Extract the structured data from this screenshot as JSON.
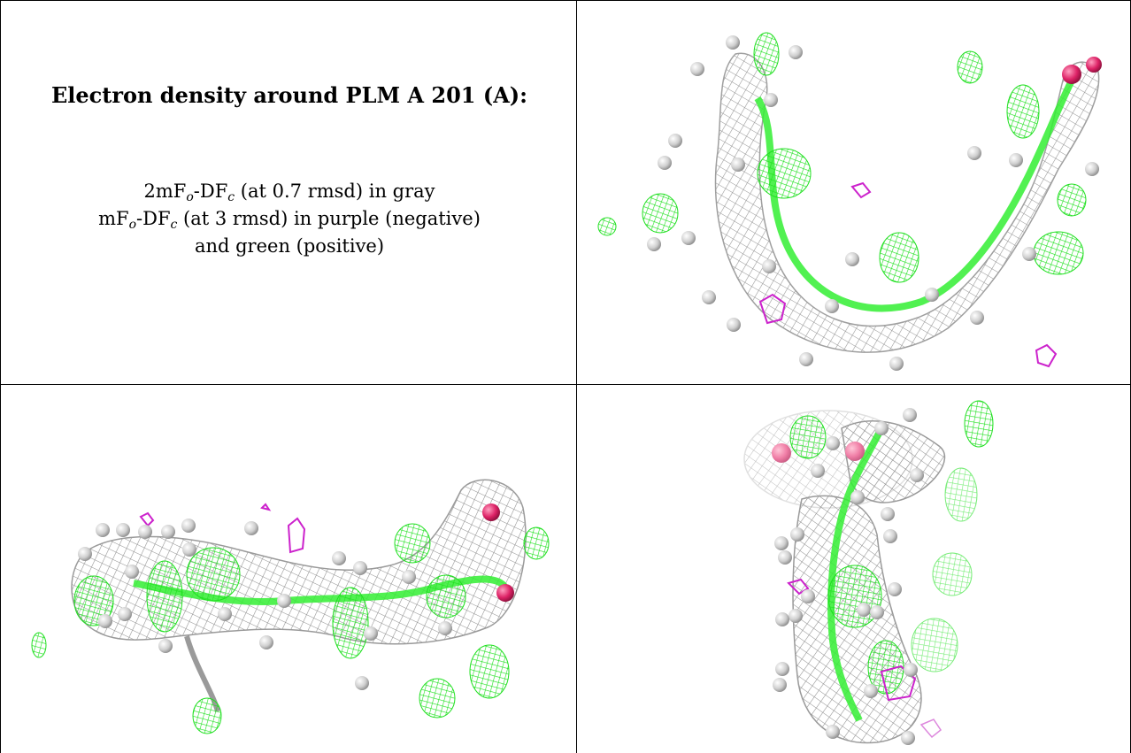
{
  "heading": "Electron density around PLM A 201 (A):",
  "legend": {
    "line1_a": "2mF",
    "line1_sub1": "o",
    "line1_b": "-DF",
    "line1_sub2": "c",
    "line1_c": " (at 0.7 rmsd) in gray",
    "line2_a": "mF",
    "line2_sub1": "o",
    "line2_b": "-DF",
    "line2_sub2": "c",
    "line2_c": " (at 3 rmsd) in purple (negative)",
    "line3": "and green (positive)"
  },
  "colors": {
    "mesh_gray": "#9a9a9a",
    "positive_green": "#22ee22",
    "negative_purple": "#cc22cc",
    "oxygen": "#dd2266",
    "water_sphere": "#d8d8d8"
  },
  "views": [
    {
      "name": "view-top-right"
    },
    {
      "name": "view-bottom-left"
    },
    {
      "name": "view-bottom-right"
    }
  ]
}
